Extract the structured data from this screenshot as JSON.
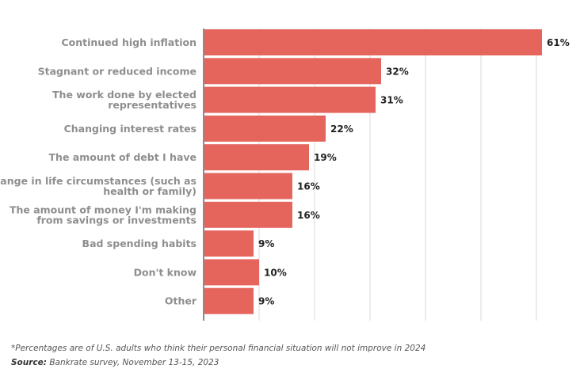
{
  "chart_data": {
    "type": "bar",
    "orientation": "horizontal",
    "categories": [
      "Continued high inflation",
      "Stagnant or reduced income",
      "The work done by elected representatives",
      "Changing interest rates",
      "The amount of debt I have",
      "Change in life circumstances (such as health or family)",
      "The amount of money I'm making from savings or investments",
      "Bad spending habits",
      "Don't know",
      "Other"
    ],
    "category_lines": [
      [
        "Continued high inflation"
      ],
      [
        "Stagnant or reduced income"
      ],
      [
        "The work done by elected",
        "representatives"
      ],
      [
        "Changing interest rates"
      ],
      [
        "The amount of debt I have"
      ],
      [
        "Change in life circumstances (such as",
        "health or family)"
      ],
      [
        "The amount of money I'm making",
        "from savings or investments"
      ],
      [
        "Bad spending habits"
      ],
      [
        "Don't know"
      ],
      [
        "Other"
      ]
    ],
    "values": [
      61,
      32,
      31,
      22,
      19,
      16,
      16,
      9,
      10,
      9
    ],
    "value_labels": [
      "61%",
      "32%",
      "31%",
      "22%",
      "19%",
      "16%",
      "16%",
      "9%",
      "10%",
      "9%"
    ],
    "xlim": [
      0,
      61
    ],
    "gridlines_at": [
      10,
      20,
      30,
      40,
      50,
      60
    ],
    "grid": true,
    "title": "",
    "xlabel": "",
    "ylabel": "",
    "bar_color": "#E5645C"
  },
  "footnote": "*Percentages are of U.S. adults who think their personal financial situation will not improve in 2024",
  "source": {
    "label": "Source:",
    "text": " Bankrate survey, November 13-15, 2023"
  }
}
